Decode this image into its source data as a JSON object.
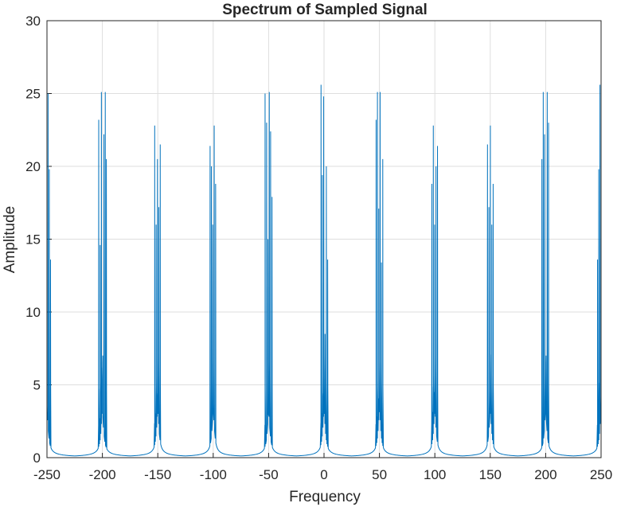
{
  "chart_data": {
    "type": "line",
    "title": "Spectrum of Sampled Signal",
    "xlabel": "Frequency",
    "ylabel": "Amplitude",
    "xlim": [
      -250,
      250
    ],
    "ylim": [
      0,
      30
    ],
    "xticks": [
      -250,
      -200,
      -150,
      -100,
      -50,
      0,
      50,
      100,
      150,
      200,
      250
    ],
    "yticks": [
      0,
      5,
      10,
      15,
      20,
      25,
      30
    ],
    "grid": true,
    "line_color": "#0072BD",
    "peak_clusters": [
      {
        "center": -250,
        "peaks": [
          [
            -252.4,
            13.2
          ],
          [
            -251.3,
            25.6
          ],
          [
            -250.2,
            11.0
          ],
          [
            -249.0,
            25.0
          ],
          [
            -247.9,
            19.8
          ],
          [
            -246.8,
            13.6
          ]
        ]
      },
      {
        "center": -200,
        "peaks": [
          [
            -203.3,
            23.2
          ],
          [
            -202.0,
            14.6
          ],
          [
            -200.9,
            25.1
          ],
          [
            -199.8,
            6.5
          ],
          [
            -198.6,
            22.2
          ],
          [
            -197.4,
            25.1
          ],
          [
            -196.4,
            20.5
          ]
        ]
      },
      {
        "center": -150,
        "peaks": [
          [
            -152.8,
            22.8
          ],
          [
            -151.5,
            16.0
          ],
          [
            -150.3,
            20.5
          ],
          [
            -149.1,
            17.2
          ],
          [
            -147.8,
            21.5
          ]
        ]
      },
      {
        "center": -100,
        "peaks": [
          [
            -102.8,
            21.4
          ],
          [
            -101.6,
            20.0
          ],
          [
            -100.4,
            16.0
          ],
          [
            -99.1,
            22.8
          ],
          [
            -97.8,
            18.8
          ]
        ]
      },
      {
        "center": -50,
        "peaks": [
          [
            -53.2,
            25.0
          ],
          [
            -51.8,
            23.0
          ],
          [
            -50.6,
            15.0
          ],
          [
            -49.4,
            25.1
          ],
          [
            -48.2,
            22.4
          ],
          [
            -46.9,
            17.9
          ]
        ]
      },
      {
        "center": 0,
        "peaks": [
          [
            -2.7,
            25.6
          ],
          [
            -1.5,
            19.4
          ],
          [
            -0.3,
            24.8
          ],
          [
            0.9,
            8.5
          ],
          [
            2.1,
            20.0
          ],
          [
            3.3,
            13.6
          ]
        ]
      },
      {
        "center": 50,
        "peaks": [
          [
            47.0,
            23.2
          ],
          [
            48.2,
            25.1
          ],
          [
            49.4,
            17.1
          ],
          [
            50.6,
            25.1
          ],
          [
            51.8,
            13.4
          ],
          [
            53.0,
            20.5
          ]
        ]
      },
      {
        "center": 100,
        "peaks": [
          [
            97.3,
            18.8
          ],
          [
            98.6,
            22.8
          ],
          [
            99.8,
            16.0
          ],
          [
            101.1,
            20.0
          ],
          [
            102.4,
            21.4
          ]
        ]
      },
      {
        "center": 150,
        "peaks": [
          [
            147.5,
            21.5
          ],
          [
            148.8,
            17.2
          ],
          [
            150.1,
            22.8
          ],
          [
            151.4,
            16.0
          ],
          [
            152.6,
            18.8
          ]
        ]
      },
      {
        "center": 200,
        "peaks": [
          [
            196.6,
            20.5
          ],
          [
            197.8,
            25.1
          ],
          [
            199.0,
            22.2
          ],
          [
            200.2,
            6.5
          ],
          [
            201.4,
            25.1
          ],
          [
            202.6,
            23.0
          ]
        ]
      },
      {
        "center": 250,
        "peaks": [
          [
            246.8,
            13.6
          ],
          [
            247.9,
            19.8
          ],
          [
            249.0,
            25.6
          ],
          [
            250.2,
            11.0
          ],
          [
            251.3,
            25.0
          ],
          [
            252.4,
            13.2
          ]
        ]
      }
    ]
  }
}
